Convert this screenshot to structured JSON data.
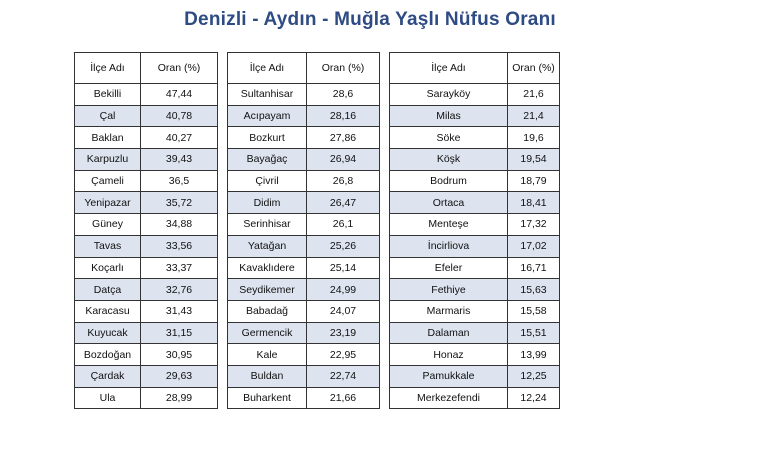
{
  "title": "Denizli - Aydın - Muğla Yaşlı Nüfus Oranı",
  "colors": {
    "title": "#2f4b84",
    "row_stripe": "#dde3ef",
    "border": "#333333"
  },
  "tables": [
    {
      "headers": [
        "İlçe Adı",
        "Oran (%)"
      ],
      "rows": [
        [
          "Bekilli",
          "47,44"
        ],
        [
          "Çal",
          "40,78"
        ],
        [
          "Baklan",
          "40,27"
        ],
        [
          "Karpuzlu",
          "39,43"
        ],
        [
          "Çameli",
          "36,5"
        ],
        [
          "Yenipazar",
          "35,72"
        ],
        [
          "Güney",
          "34,88"
        ],
        [
          "Tavas",
          "33,56"
        ],
        [
          "Koçarlı",
          "33,37"
        ],
        [
          "Datça",
          "32,76"
        ],
        [
          "Karacasu",
          "31,43"
        ],
        [
          "Kuyucak",
          "31,15"
        ],
        [
          "Bozdoğan",
          "30,95"
        ],
        [
          "Çardak",
          "29,63"
        ],
        [
          "Ula",
          "28,99"
        ]
      ]
    },
    {
      "headers": [
        "İlçe Adı",
        "Oran (%)"
      ],
      "rows": [
        [
          "Sultanhisar",
          "28,6"
        ],
        [
          "Acıpayam",
          "28,16"
        ],
        [
          "Bozkurt",
          "27,86"
        ],
        [
          "Bayağaç",
          "26,94"
        ],
        [
          "Çivril",
          "26,8"
        ],
        [
          "Didim",
          "26,47"
        ],
        [
          "Serinhisar",
          "26,1"
        ],
        [
          "Yatağan",
          "25,26"
        ],
        [
          "Kavaklıdere",
          "25,14"
        ],
        [
          "Seydikemer",
          "24,99"
        ],
        [
          "Babadağ",
          "24,07"
        ],
        [
          "Germencik",
          "23,19"
        ],
        [
          "Kale",
          "22,95"
        ],
        [
          "Buldan",
          "22,74"
        ],
        [
          "Buharkent",
          "21,66"
        ]
      ]
    },
    {
      "headers": [
        "İlçe Adı",
        "Oran (%)"
      ],
      "rows": [
        [
          "Sarayköy",
          "21,6"
        ],
        [
          "Milas",
          "21,4"
        ],
        [
          "Söke",
          "19,6"
        ],
        [
          "Köşk",
          "19,54"
        ],
        [
          "Bodrum",
          "18,79"
        ],
        [
          "Ortaca",
          "18,41"
        ],
        [
          "Menteşe",
          "17,32"
        ],
        [
          "İncirliova",
          "17,02"
        ],
        [
          "Efeler",
          "16,71"
        ],
        [
          "Fethiye",
          "15,63"
        ],
        [
          "Marmaris",
          "15,58"
        ],
        [
          "Dalaman",
          "15,51"
        ],
        [
          "Honaz",
          "13,99"
        ],
        [
          "Pamukkale",
          "12,25"
        ],
        [
          "Merkezefendi",
          "12,24"
        ]
      ]
    }
  ]
}
